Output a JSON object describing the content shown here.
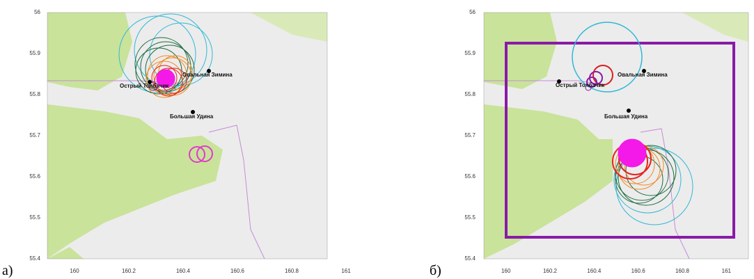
{
  "panels": [
    {
      "label": "а)",
      "xlim": [
        159.9,
        161
      ],
      "ylim": [
        55.4,
        56
      ],
      "xticks": [
        160,
        160.2,
        160.4,
        160.6,
        160.8,
        161
      ],
      "yticks": [
        55.4,
        55.5,
        55.6,
        55.7,
        55.8,
        55.9,
        56
      ],
      "places": [
        {
          "name": "Овальная Зимина"
        },
        {
          "name": "Острый Толбачик"
        },
        {
          "name": "Большая Удина"
        }
      ]
    },
    {
      "label": "б)",
      "xlim": [
        159.9,
        161.1
      ],
      "ylim": [
        55.4,
        56
      ],
      "xticks": [
        160,
        160.2,
        160.4,
        160.6,
        160.8,
        161
      ],
      "yticks": [
        55.4,
        55.5,
        55.6,
        55.7,
        55.8,
        55.9,
        56
      ],
      "places": [
        {
          "name": "Овальная Зимина"
        },
        {
          "name": "Острый Толбачик"
        },
        {
          "name": "Большая Удина"
        }
      ]
    }
  ]
}
